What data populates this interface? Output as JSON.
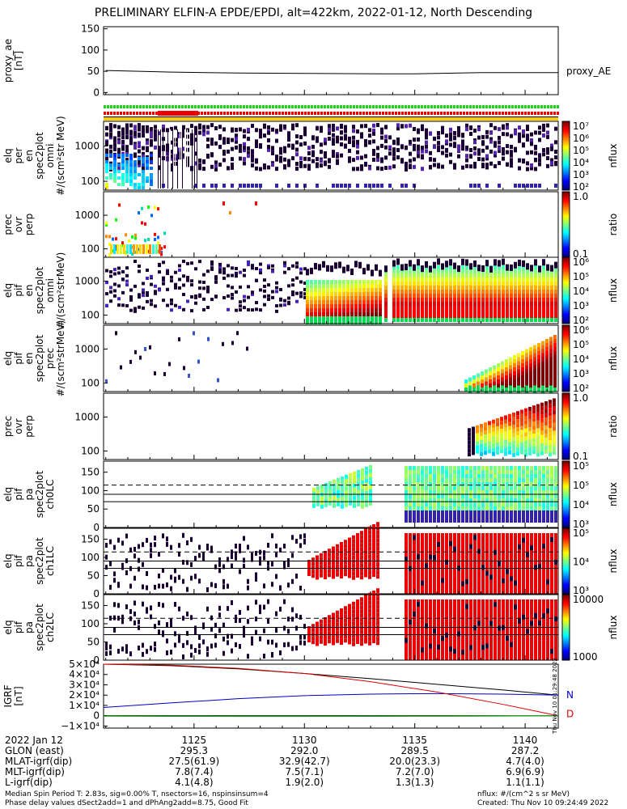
{
  "title": "PRELIMINARY ELFIN-A EPDE/EPDI, alt=422km, 2022-01-12, North Descending",
  "chart_data": [
    {
      "type": "line",
      "ylabel": [
        "proxy_ae",
        "[nT]"
      ],
      "series_label": "proxy_AE",
      "yticks": [
        "150",
        "100",
        "50",
        "0"
      ],
      "ylim": [
        -5,
        155
      ],
      "x": [
        1121.0,
        1124.0,
        1127.0,
        1130.0,
        1133.5,
        1135.0,
        1138.0,
        1141.5
      ],
      "y": [
        52,
        48,
        46,
        45,
        44,
        44,
        47,
        47
      ]
    },
    {
      "type": "heatmap",
      "ylabel": [
        "elq",
        "per",
        "en",
        "spec2plot",
        "omni",
        "#/(scm²str MeV)"
      ],
      "yticks": [
        "1000",
        "100"
      ],
      "colorbar": {
        "label": "nflux",
        "ticks": [
          "10⁷",
          "10⁶",
          "10⁵",
          "10⁴",
          "10³",
          "10²"
        ]
      }
    },
    {
      "type": "heatmap",
      "ylabel": [
        "prec",
        "ovr",
        "perp"
      ],
      "yticks": [
        "1000",
        "100"
      ],
      "colorbar": {
        "label": "ratio",
        "ticks": [
          "1.0",
          "0.1"
        ]
      }
    },
    {
      "type": "heatmap",
      "ylabel": [
        "elq",
        "pif",
        "en",
        "spec2plot",
        "omni",
        "#/(scm²strMeV)"
      ],
      "yticks": [
        "1000",
        "100"
      ],
      "colorbar": {
        "label": "nflux",
        "ticks": [
          "10⁶",
          "10⁵",
          "10⁴",
          "10³",
          "10²"
        ]
      }
    },
    {
      "type": "heatmap",
      "ylabel": [
        "elq",
        "pif",
        "en",
        "spec2plot",
        "prec",
        "#/(scm²strMeV)"
      ],
      "yticks": [
        "1000",
        "100"
      ],
      "colorbar": {
        "label": "nflux",
        "ticks": [
          "10⁶",
          "10⁵",
          "10⁴",
          "10³",
          "10²"
        ]
      }
    },
    {
      "type": "heatmap",
      "ylabel": [
        "prec",
        "ovr",
        "perp"
      ],
      "yticks": [
        "1000",
        "100"
      ],
      "colorbar": {
        "label": "ratio",
        "ticks": [
          "1.0",
          "0.1"
        ]
      }
    },
    {
      "type": "heatmap",
      "ylabel": [
        "elq",
        "pif",
        "pa",
        "spec2plot",
        "ch0LC"
      ],
      "yticks": [
        "150",
        "100",
        "50",
        "0"
      ],
      "colorbar": {
        "label": "nflux",
        "ticks": [
          "10⁵",
          "10⁵",
          "10⁴",
          "10³"
        ]
      }
    },
    {
      "type": "heatmap",
      "ylabel": [
        "elq",
        "pif",
        "pa",
        "spec2plot",
        "ch1LC"
      ],
      "yticks": [
        "150",
        "100",
        "50",
        "0"
      ],
      "colorbar": {
        "label": "nflux",
        "ticks": [
          "10⁵",
          "10⁴",
          "10³"
        ]
      }
    },
    {
      "type": "heatmap",
      "ylabel": [
        "elq",
        "pif",
        "pa",
        "spec2plot",
        "ch2LC"
      ],
      "yticks": [
        "150",
        "100",
        "50",
        "0"
      ],
      "colorbar": {
        "label": "nflux",
        "ticks": [
          "10000",
          "1000"
        ]
      }
    },
    {
      "type": "line",
      "ylabel": [
        "IGRF",
        "[nT]"
      ],
      "yticks": [
        "5×10⁴",
        "4×10⁴",
        "3×10⁴",
        "2×10⁴",
        "1×10⁴",
        "0",
        "−1×10⁴"
      ],
      "ylim": [
        -12000,
        50000
      ],
      "legend": [
        "N",
        "D"
      ],
      "series": [
        {
          "color": "#000000",
          "x": [
            1120.9,
            1124,
            1127,
            1130,
            1133,
            1136,
            1139,
            1141.5
          ],
          "y": [
            50000,
            48500,
            45500,
            41000,
            36000,
            30500,
            25000,
            20000
          ]
        },
        {
          "color": "#0000cc",
          "x": [
            1120.9,
            1124,
            1127,
            1130,
            1133,
            1136,
            1139,
            1141.5
          ],
          "y": [
            8000,
            12500,
            16500,
            19500,
            21000,
            21500,
            21000,
            20000
          ]
        },
        {
          "color": "#dd0000",
          "x": [
            1120.9,
            1124,
            1127,
            1130,
            1133,
            1136,
            1139,
            1141.5
          ],
          "y": [
            50000,
            49000,
            46000,
            41000,
            33000,
            23000,
            11000,
            0
          ]
        },
        {
          "color": "#00aa00",
          "x": [
            1120.9,
            1124,
            1127,
            1130,
            1133,
            1136,
            1139,
            1141.5
          ],
          "y": [
            -400,
            -600,
            -700,
            -700,
            -600,
            -500,
            -300,
            0
          ]
        }
      ]
    }
  ],
  "side_stamp": "Thu Nov 10 01:29:48 2022",
  "ephemeris": {
    "labels": [
      "2022 Jan 12",
      "GLON (east)",
      "MLAT-igrf(dip)",
      "MLT-igrf(dip)",
      "L-igrf(dip)"
    ],
    "columns": [
      {
        "x": 1125,
        "values": [
          "1125",
          "295.3",
          "27.5(61.9)",
          "7.8(7.4)",
          "4.1(4.8)"
        ]
      },
      {
        "x": 1130,
        "values": [
          "1130",
          "292.0",
          "32.9(42.7)",
          "7.5(7.1)",
          "1.9(2.0)"
        ]
      },
      {
        "x": 1135,
        "values": [
          "1135",
          "289.5",
          "20.0(23.3)",
          "7.2(7.0)",
          "1.3(1.3)"
        ]
      },
      {
        "x": 1140,
        "values": [
          "1140",
          "287.2",
          "4.7(4.0)",
          "6.9(6.9)",
          "1.1(1.1)"
        ]
      }
    ]
  },
  "footer": {
    "left1": "Median Spin Period T: 2.83s, sig=0.00% T, nsectors=16, nspinsinsum=4",
    "left2": "Phase delay values dSect2add=1 and dPhAng2add=8.75, Good Fit",
    "right1": "nflux: #/(cm^2 s sr MeV)",
    "right2": "Created: Thu Nov 10 09:24:49 2022"
  }
}
